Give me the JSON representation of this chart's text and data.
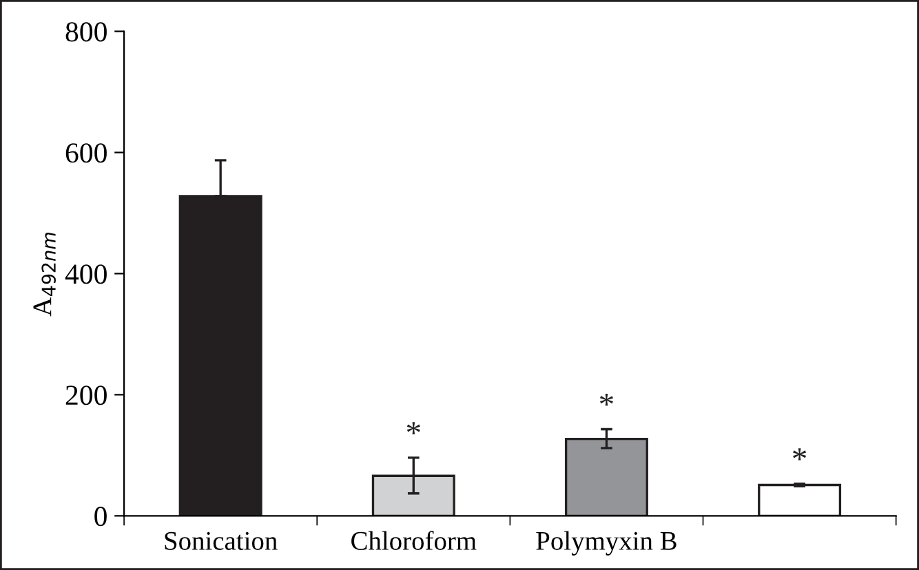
{
  "chart_data": {
    "type": "bar",
    "ylabel": "A$_{492nm}$",
    "categories": [
      "Sonication",
      "Chloroform",
      "Polymyxin B",
      null
    ],
    "values": [
      528,
      66,
      127,
      51
    ],
    "colors": [
      "#231f20",
      "#d1d2d4",
      "#939598",
      "#ffffff"
    ],
    "errors": [
      [
        528,
        587
      ],
      [
        37,
        96
      ],
      [
        112,
        143
      ],
      [
        49,
        53
      ]
    ],
    "value_labels": [
      null,
      "*",
      "*",
      "*"
    ],
    "ylim": [
      0,
      800
    ],
    "yticks": [
      0,
      200,
      400,
      600,
      800
    ],
    "grid": false
  }
}
